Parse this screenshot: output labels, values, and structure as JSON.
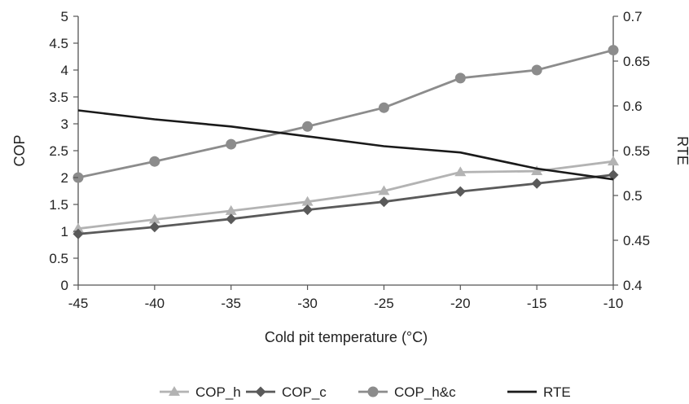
{
  "chart_data": {
    "type": "line",
    "title": "",
    "xlabel": "Cold pit temperature (°C)",
    "ylabel_left": "COP",
    "ylabel_right": "RTE",
    "x": [
      -45,
      -40,
      -35,
      -30,
      -25,
      -20,
      -15,
      -10
    ],
    "x_ticks": [
      "-45",
      "-40",
      "-35",
      "-30",
      "-25",
      "-20",
      "-15",
      "-10"
    ],
    "xlim": [
      -45,
      -10
    ],
    "ylim_left": [
      0,
      5
    ],
    "y_ticks_left": [
      "0",
      "0.5",
      "1",
      "1.5",
      "2",
      "2.5",
      "3",
      "3.5",
      "4",
      "4.5",
      "5"
    ],
    "ylim_right": [
      0.4,
      0.7
    ],
    "y_ticks_right": [
      "0.4",
      "0.45",
      "0.5",
      "0.55",
      "0.6",
      "0.65",
      "0.7"
    ],
    "grid": false,
    "legend_position": "bottom",
    "series": [
      {
        "name": "COP_h",
        "axis": "left",
        "marker": "triangle",
        "color": "#b3b3b3",
        "values": [
          1.05,
          1.22,
          1.38,
          1.55,
          1.75,
          2.1,
          2.12,
          2.3
        ]
      },
      {
        "name": "COP_c",
        "axis": "left",
        "marker": "diamond",
        "color": "#5a5a5a",
        "values": [
          0.95,
          1.08,
          1.23,
          1.4,
          1.55,
          1.74,
          1.89,
          2.05
        ]
      },
      {
        "name": "COP_h&c",
        "axis": "left",
        "marker": "circle",
        "color": "#8c8c8c",
        "values": [
          2.0,
          2.3,
          2.62,
          2.95,
          3.3,
          3.85,
          4.0,
          4.37
        ]
      },
      {
        "name": "RTE",
        "axis": "right",
        "marker": "none",
        "color": "#1a1a1a",
        "values": [
          0.595,
          0.585,
          0.577,
          0.566,
          0.555,
          0.548,
          0.53,
          0.518
        ]
      }
    ]
  }
}
